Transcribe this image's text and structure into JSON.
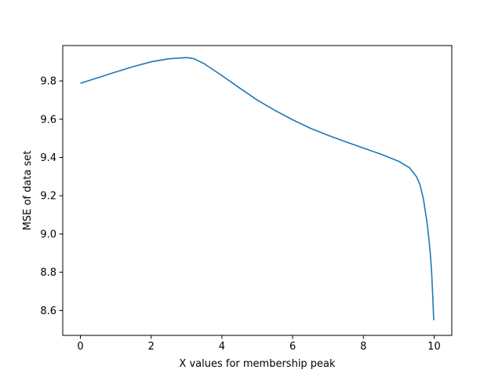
{
  "chart_data": {
    "type": "line",
    "title": "",
    "xlabel": "X values for membership peak",
    "ylabel": "MSE of data set",
    "xlim": [
      -0.5,
      10.5
    ],
    "ylim": [
      8.47,
      9.985
    ],
    "xticks": [
      0,
      2,
      4,
      6,
      8,
      10
    ],
    "yticks": [
      8.6,
      8.8,
      9.0,
      9.2,
      9.4,
      9.6,
      9.8
    ],
    "xtick_labels": [
      "0",
      "2",
      "4",
      "6",
      "8",
      "10"
    ],
    "ytick_labels": [
      "8.6",
      "8.8",
      "9.0",
      "9.2",
      "9.4",
      "9.6",
      "9.8"
    ],
    "grid": false,
    "series": [
      {
        "color": "#1f77b4",
        "x": [
          0,
          0.5,
          1,
          1.5,
          2,
          2.5,
          3,
          3.2,
          3.5,
          4,
          4.5,
          5,
          5.5,
          6,
          6.5,
          7,
          7.5,
          8,
          8.5,
          9,
          9.3,
          9.5,
          9.6,
          9.7,
          9.8,
          9.85,
          9.9,
          9.93,
          9.96,
          9.98,
          9.99
        ],
        "y": [
          9.788,
          9.817,
          9.847,
          9.875,
          9.9,
          9.916,
          9.922,
          9.917,
          9.89,
          9.828,
          9.763,
          9.7,
          9.646,
          9.597,
          9.553,
          9.516,
          9.482,
          9.449,
          9.417,
          9.38,
          9.347,
          9.3,
          9.258,
          9.18,
          9.06,
          8.98,
          8.88,
          8.8,
          8.68,
          8.59,
          8.549
        ]
      }
    ]
  }
}
